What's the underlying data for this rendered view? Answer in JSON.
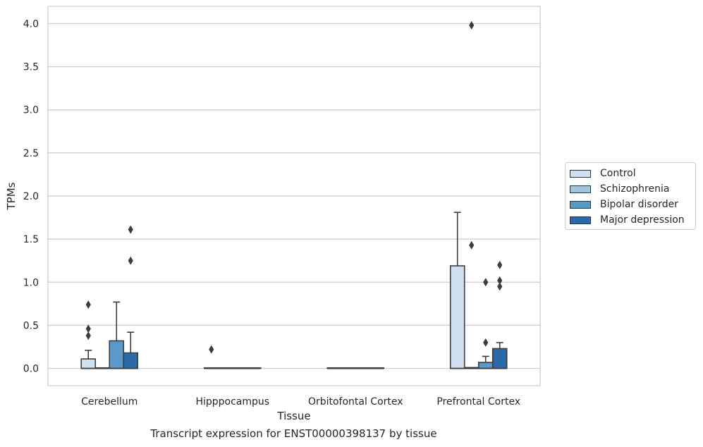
{
  "chart_data": {
    "type": "box",
    "xlabel": "Tissue",
    "ylabel": "TPMs",
    "caption": "Transcript expression for ENST00000398137 by tissue",
    "ylim": [
      -0.2,
      4.2
    ],
    "yticks": [
      "0.0",
      "0.5",
      "1.0",
      "1.5",
      "2.0",
      "2.5",
      "3.0",
      "3.5",
      "4.0"
    ],
    "grid": true,
    "legend_position": "right",
    "categories": [
      "Cerebellum",
      "Hipppocampus",
      "Orbitofontal Cortex",
      "Prefrontal Cortex"
    ],
    "series": [
      {
        "name": "Control",
        "color": "#cfe0f0",
        "boxes": [
          {
            "q1": 0.0,
            "median": 0.0,
            "q3": 0.11,
            "whisker_low": 0.0,
            "whisker_high": 0.21,
            "outliers": [
              0.38,
              0.46,
              0.74
            ]
          },
          {
            "q1": 0.0,
            "median": 0.0,
            "q3": 0.0,
            "whisker_low": 0.0,
            "whisker_high": 0.0,
            "outliers": [
              0.22
            ]
          },
          {
            "q1": 0.0,
            "median": 0.0,
            "q3": 0.0,
            "whisker_low": 0.0,
            "whisker_high": 0.0,
            "outliers": []
          },
          {
            "q1": 0.0,
            "median": 0.0,
            "q3": 1.19,
            "whisker_low": 0.0,
            "whisker_high": 1.81,
            "outliers": []
          }
        ]
      },
      {
        "name": "Schizophrenia",
        "color": "#9ec6de",
        "boxes": [
          {
            "q1": 0.0,
            "median": 0.0,
            "q3": 0.0,
            "whisker_low": 0.0,
            "whisker_high": 0.0,
            "outliers": []
          },
          {
            "q1": 0.0,
            "median": 0.0,
            "q3": 0.0,
            "whisker_low": 0.0,
            "whisker_high": 0.0,
            "outliers": []
          },
          {
            "q1": 0.0,
            "median": 0.0,
            "q3": 0.0,
            "whisker_low": 0.0,
            "whisker_high": 0.0,
            "outliers": []
          },
          {
            "q1": 0.0,
            "median": 0.0,
            "q3": 0.01,
            "whisker_low": 0.0,
            "whisker_high": 0.01,
            "outliers": [
              1.43,
              3.98
            ]
          }
        ]
      },
      {
        "name": "Bipolar disorder",
        "color": "#5b9ac8",
        "boxes": [
          {
            "q1": 0.0,
            "median": 0.0,
            "q3": 0.32,
            "whisker_low": 0.0,
            "whisker_high": 0.77,
            "outliers": []
          },
          {
            "q1": 0.0,
            "median": 0.0,
            "q3": 0.0,
            "whisker_low": 0.0,
            "whisker_high": 0.0,
            "outliers": []
          },
          {
            "q1": 0.0,
            "median": 0.0,
            "q3": 0.0,
            "whisker_low": 0.0,
            "whisker_high": 0.0,
            "outliers": []
          },
          {
            "q1": 0.0,
            "median": 0.0,
            "q3": 0.07,
            "whisker_low": 0.0,
            "whisker_high": 0.14,
            "outliers": [
              0.3,
              1.0
            ]
          }
        ]
      },
      {
        "name": "Major depression",
        "color": "#2b6aa6",
        "boxes": [
          {
            "q1": 0.0,
            "median": 0.0,
            "q3": 0.18,
            "whisker_low": 0.0,
            "whisker_high": 0.42,
            "outliers": [
              1.25,
              1.61
            ]
          },
          {
            "q1": 0.0,
            "median": 0.0,
            "q3": 0.0,
            "whisker_low": 0.0,
            "whisker_high": 0.0,
            "outliers": []
          },
          {
            "q1": 0.0,
            "median": 0.0,
            "q3": 0.0,
            "whisker_low": 0.0,
            "whisker_high": 0.0,
            "outliers": []
          },
          {
            "q1": 0.0,
            "median": 0.0,
            "q3": 0.23,
            "whisker_low": 0.0,
            "whisker_high": 0.3,
            "outliers": [
              0.95,
              1.02,
              1.2
            ]
          }
        ]
      }
    ]
  }
}
